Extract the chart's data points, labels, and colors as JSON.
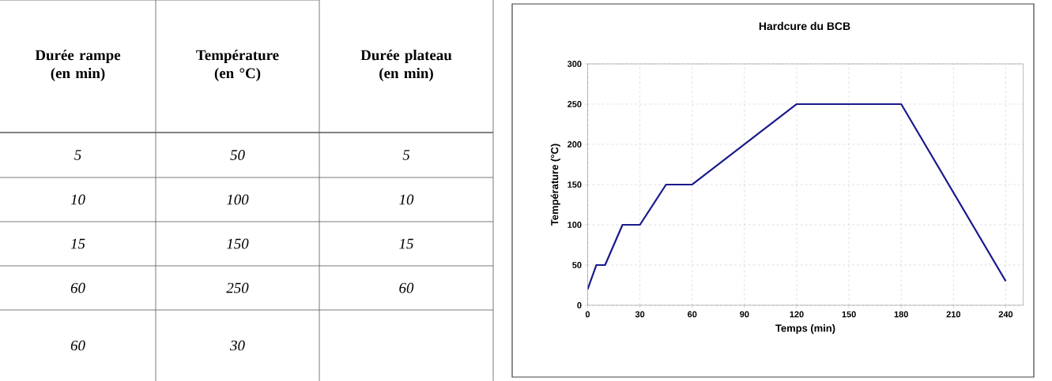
{
  "chart_data": [
    {
      "type": "other",
      "categories": [
        "Durée rampe (en min)",
        "Température (en °C)",
        "Durée plateau (en min)"
      ],
      "cell_labels": [
        [
          "5",
          "50",
          "5"
        ],
        [
          "10",
          "100",
          "10"
        ],
        [
          "15",
          "150",
          "15"
        ],
        [
          "60",
          "250",
          "60"
        ],
        [
          "60",
          "30",
          null
        ]
      ],
      "data_labels": true
    },
    {
      "type": "line",
      "title": "Hardcure du BCB",
      "xlabel": "Temps (min)",
      "ylabel": "Température (°C)",
      "x": [
        0,
        5,
        10,
        20,
        30,
        45,
        60,
        120,
        180,
        240
      ],
      "series": [
        {
          "color": "#1a1a8c",
          "values": [
            20,
            50,
            50,
            100,
            100,
            150,
            150,
            250,
            250,
            30
          ]
        }
      ],
      "xlim": [
        0,
        250
      ],
      "ylim": [
        0,
        300
      ],
      "xticks": [
        0,
        30,
        60,
        90,
        120,
        150,
        180,
        210,
        240
      ],
      "yticks": [
        0,
        50,
        100,
        150,
        200,
        250,
        300
      ],
      "grid": true,
      "line_style": "solid"
    }
  ]
}
